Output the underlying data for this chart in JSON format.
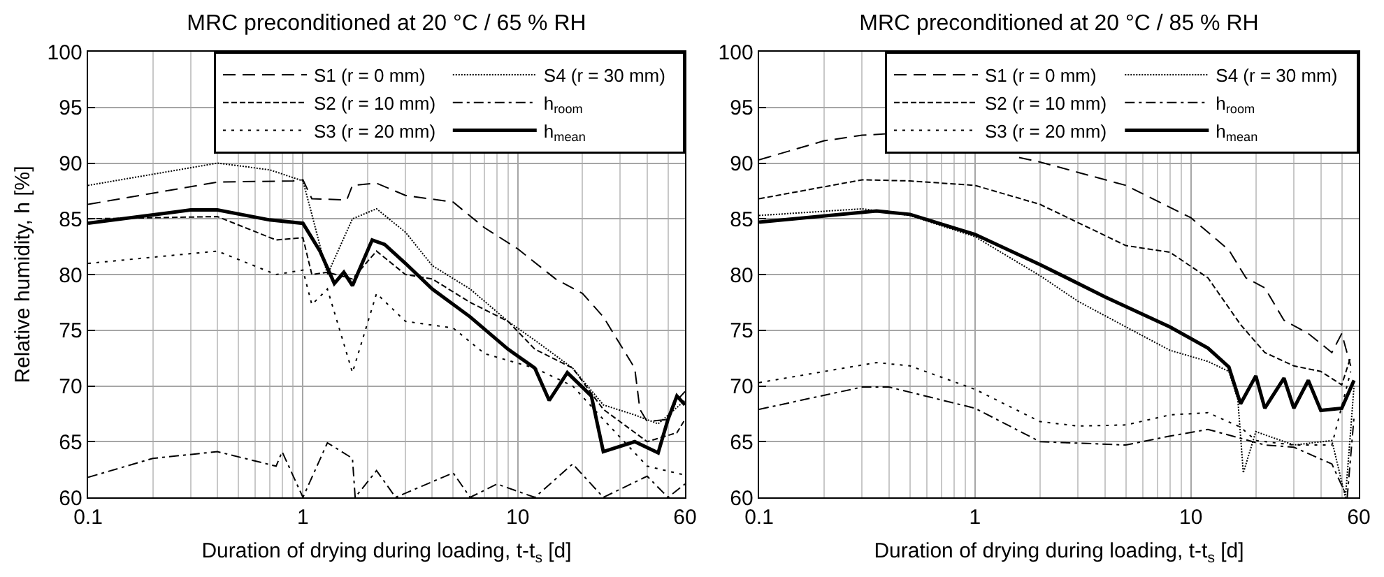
{
  "chart_data": [
    {
      "type": "line",
      "title": "MRC preconditioned at 20 °C / 65 % RH",
      "xlabel": "Duration of drying during loading, t-t$_{s}$ [d]",
      "ylabel": "Relative humidity, h [%]",
      "log": "x",
      "xlim": [
        0.1,
        60
      ],
      "xticks": [
        0.1,
        1,
        10,
        60
      ],
      "ylim": [
        60,
        100
      ],
      "yticks": [
        60,
        65,
        70,
        75,
        80,
        85,
        90,
        95,
        100
      ],
      "grid": true,
      "legend": "top right",
      "series": [
        {
          "name": "S1 (r = 0 mm)",
          "color": "#000000",
          "line_style": "dashed",
          "x": [
            0.1,
            0.4,
            0.9,
            1.0,
            1.1,
            1.6,
            1.7,
            2.2,
            3,
            5,
            7,
            10,
            15,
            20,
            25,
            35,
            37,
            40,
            50,
            55,
            60
          ],
          "values": [
            86.3,
            88.3,
            88.4,
            88.5,
            86.8,
            86.7,
            88,
            88.2,
            87.1,
            86.5,
            84.2,
            82.3,
            79.6,
            78.3,
            76.2,
            71.6,
            67.9,
            66.8,
            67,
            68.7,
            69.5
          ]
        },
        {
          "name": "S2 (r = 10 mm)",
          "color": "#000000",
          "line_style": "short-dashed",
          "x": [
            0.1,
            0.4,
            0.75,
            1.0,
            1.1,
            1.3,
            1.7,
            2.2,
            3,
            4,
            6,
            9,
            12,
            18,
            25,
            40,
            55,
            60
          ],
          "values": [
            85,
            85.2,
            83.1,
            83.3,
            80,
            80.2,
            79.6,
            82.1,
            80,
            79.6,
            77.5,
            75.8,
            73.3,
            71.6,
            67.9,
            65,
            65.8,
            67
          ]
        },
        {
          "name": "S3 (r = 20 mm)",
          "color": "#000000",
          "line_style": "dotted",
          "x": [
            0.1,
            0.4,
            0.75,
            1.0,
            1.1,
            1.3,
            1.7,
            2.2,
            3,
            5,
            7,
            12,
            18,
            25,
            40,
            60
          ],
          "values": [
            81,
            82.1,
            80,
            80.4,
            77.3,
            78.7,
            71.2,
            78.3,
            75.8,
            75.2,
            72.9,
            71.6,
            70,
            67,
            62.8,
            62
          ]
        },
        {
          "name": "S4 (r = 30 mm)",
          "color": "#000000",
          "line_style": "dense-dotted",
          "x": [
            0.1,
            0.4,
            0.7,
            1.0,
            1.1,
            1.3,
            1.7,
            2.2,
            3,
            4,
            6,
            9,
            12,
            18,
            25,
            35,
            45,
            60
          ],
          "values": [
            88,
            90,
            89.4,
            88.4,
            85.4,
            80,
            85,
            85.9,
            83.8,
            80.8,
            78.7,
            75.8,
            74.1,
            71.6,
            68.3,
            67.4,
            66.6,
            68.7
          ]
        },
        {
          "name": "h$_{room}$",
          "color": "#000000",
          "line_style": "dash-dot",
          "x": [
            0.1,
            0.2,
            0.4,
            0.75,
            0.8,
            1.0,
            1.3,
            1.7,
            1.75,
            2.2,
            2.7,
            5,
            6,
            8,
            12,
            18,
            25,
            40,
            50,
            60
          ],
          "values": [
            61.8,
            63.5,
            64.1,
            62.8,
            64.1,
            60,
            64.9,
            63.5,
            60,
            62.4,
            60,
            62.2,
            60,
            61.2,
            60,
            63,
            60,
            61.9,
            60,
            61.2
          ]
        },
        {
          "name": "h$_{mean}$",
          "color": "#000000",
          "line_style": "solid",
          "x": [
            0.1,
            0.3,
            0.4,
            0.7,
            1.0,
            1.2,
            1.4,
            1.55,
            1.7,
            2.1,
            2.4,
            3,
            4,
            6,
            9,
            12,
            14,
            17,
            22,
            25,
            35,
            45,
            50,
            55,
            60
          ],
          "values": [
            84.6,
            85.8,
            85.8,
            84.9,
            84.6,
            82.1,
            79.2,
            80.2,
            79,
            83.1,
            82.7,
            81,
            78.7,
            76.2,
            73.3,
            71.6,
            68.7,
            71.2,
            69.1,
            64.1,
            65,
            64,
            67,
            69.1,
            68.3
          ]
        }
      ]
    },
    {
      "type": "line",
      "title": "MRC preconditioned at 20 °C / 85 % RH",
      "xlabel": "Duration of drying during loading, t-t$_{s}$ [d]",
      "log": "x",
      "xlim": [
        0.1,
        60
      ],
      "xticks": [
        0.1,
        1,
        10,
        60
      ],
      "ylim": [
        60,
        100
      ],
      "yticks": [
        60,
        65,
        70,
        75,
        80,
        85,
        90,
        95,
        100
      ],
      "grid": true,
      "legend": "top right",
      "series": [
        {
          "name": "S1 (r = 0 mm)",
          "color": "#000000",
          "line_style": "dashed",
          "x": [
            0.1,
            0.2,
            0.3,
            0.45,
            0.7,
            1.6,
            2,
            5,
            10,
            15,
            18,
            22,
            27,
            35,
            45,
            50,
            55
          ],
          "values": [
            90.3,
            92,
            92.5,
            92.7,
            null,
            90.5,
            90.1,
            88,
            85.1,
            82.2,
            79.7,
            78.8,
            75.9,
            74.7,
            73,
            74.7,
            71.8
          ]
        },
        {
          "name": "S2 (r = 10 mm)",
          "color": "#000000",
          "line_style": "short-dashed",
          "x": [
            0.1,
            0.3,
            0.5,
            1,
            2,
            5,
            8,
            12,
            17,
            22,
            30,
            40,
            50,
            55
          ],
          "values": [
            86.8,
            88.5,
            88.4,
            88,
            86.3,
            82.6,
            82,
            79.7,
            75.5,
            73,
            71.8,
            71.3,
            70.1,
            72.6
          ]
        },
        {
          "name": "S3 (r = 20 mm)",
          "color": "#000000",
          "line_style": "dotted",
          "x": [
            0.1,
            0.35,
            0.5,
            1,
            2,
            3,
            5,
            8,
            12,
            17,
            20,
            30,
            45,
            55
          ],
          "values": [
            70.3,
            72.1,
            71.8,
            69.7,
            66.8,
            66.4,
            66.5,
            67.4,
            67.6,
            66.3,
            65.1,
            64.7,
            64.7,
            71.3
          ]
        },
        {
          "name": "S4 (r = 30 mm)",
          "color": "#000000",
          "line_style": "dense-dotted",
          "x": [
            0.1,
            0.3,
            0.5,
            1,
            2,
            3,
            5,
            8,
            12,
            15,
            16.5,
            17.5,
            20,
            30,
            45,
            52,
            55,
            57
          ],
          "values": [
            85.3,
            85.9,
            85.3,
            83.4,
            79.9,
            77.6,
            75.3,
            73.2,
            72.2,
            71.3,
            68.8,
            62.2,
            65.9,
            64.7,
            65.1,
            60,
            66,
            70
          ]
        },
        {
          "name": "h$_{room}$",
          "color": "#000000",
          "line_style": "dash-dot",
          "x": [
            0.1,
            0.3,
            0.4,
            1,
            2,
            5,
            8,
            12,
            17,
            22,
            30,
            45,
            53,
            57
          ],
          "values": [
            67.9,
            69.9,
            69.9,
            68,
            65,
            64.7,
            65.5,
            66.1,
            65.3,
            64.7,
            64.5,
            63,
            60,
            67.2
          ]
        },
        {
          "name": "h$_{mean}$",
          "color": "#000000",
          "line_style": "solid",
          "x": [
            0.1,
            0.35,
            0.5,
            1,
            2,
            4,
            8,
            12,
            15,
            17,
            20,
            22,
            27,
            30,
            35,
            40,
            50,
            57
          ],
          "values": [
            84.7,
            85.7,
            85.4,
            83.6,
            80.9,
            78,
            75.3,
            73.4,
            71.7,
            68.4,
            70.9,
            68,
            70.7,
            68,
            70.5,
            67.8,
            68,
            70.5
          ]
        }
      ]
    }
  ]
}
